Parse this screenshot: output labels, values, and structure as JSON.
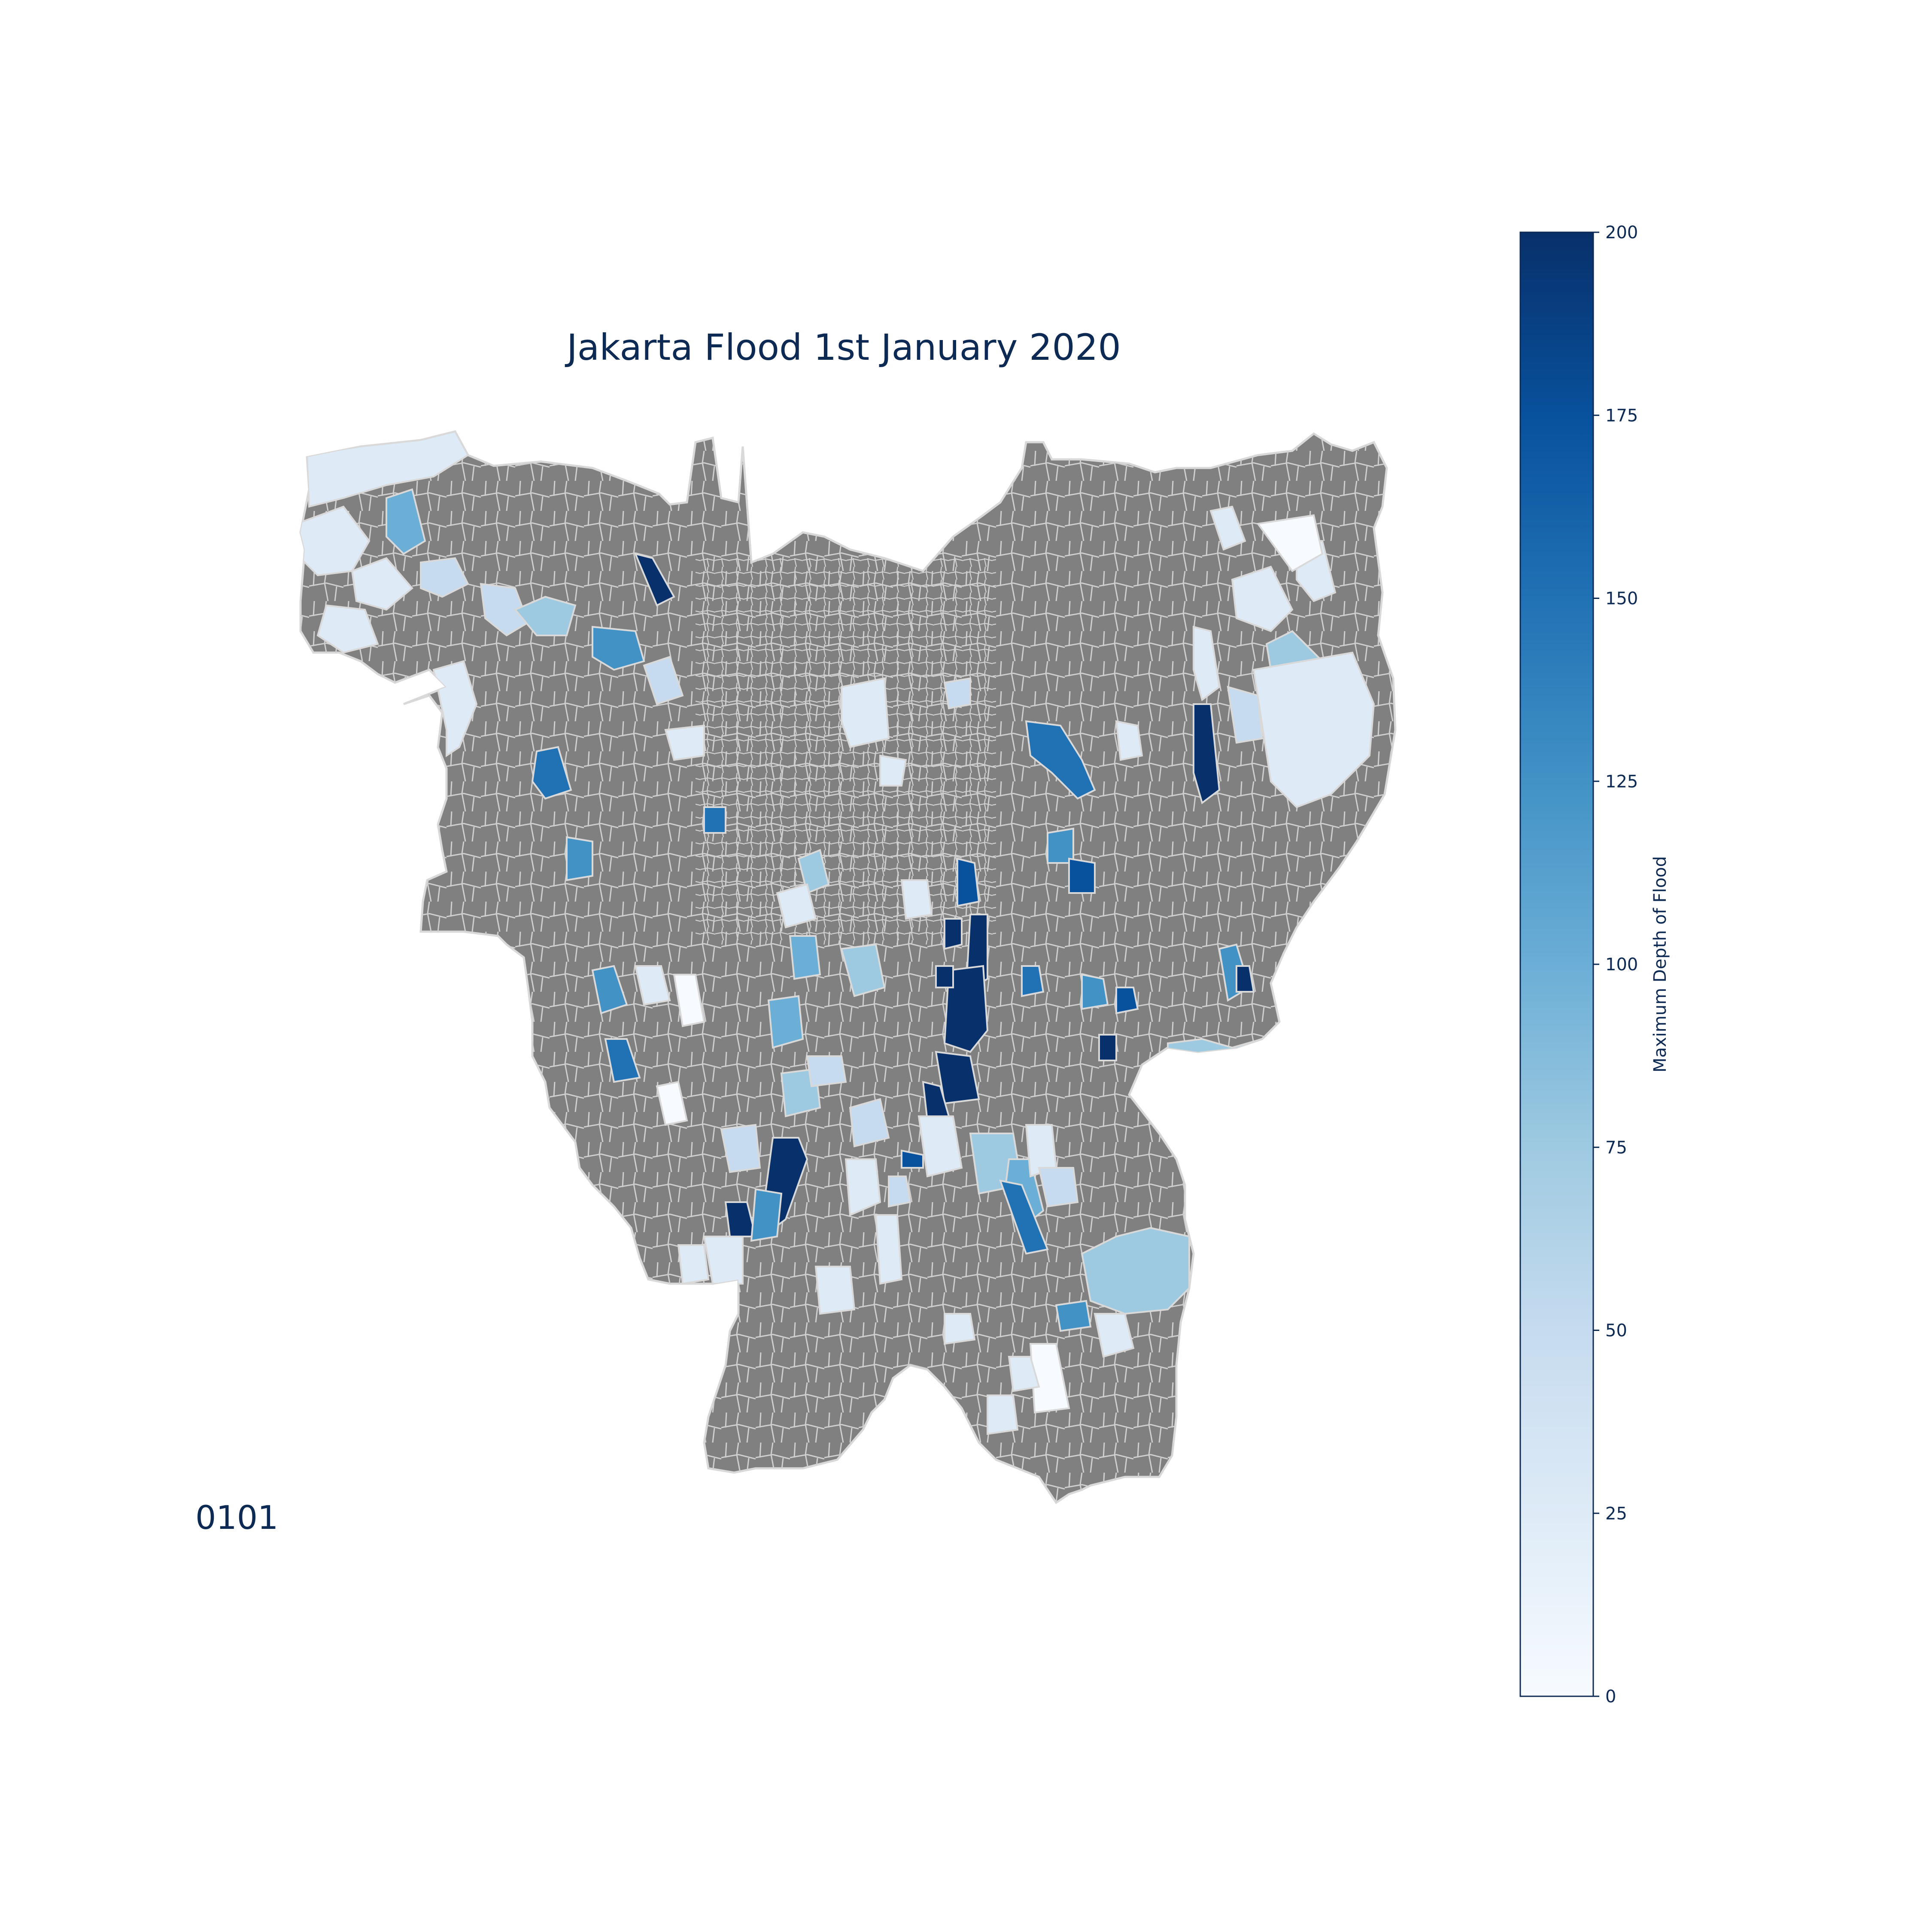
{
  "map": {
    "title": "Jakarta Flood 1st January 2020",
    "frame_label": "0101",
    "base_region_color": "#808080",
    "border_color": "#d9d9d9"
  },
  "colorbar": {
    "label": "Maximum Depth of Flood",
    "min": 0,
    "max": 200,
    "ticks": [
      0,
      25,
      50,
      75,
      100,
      125,
      150,
      175,
      200
    ],
    "tick_labels": [
      "0",
      "25",
      "50",
      "75",
      "100",
      "125",
      "150",
      "175",
      "200"
    ],
    "colormap": [
      "#f7fbff",
      "#deebf7",
      "#c6dbef",
      "#9ecae1",
      "#6baed6",
      "#4292c6",
      "#2171b5",
      "#08519c",
      "#08306b"
    ]
  }
}
